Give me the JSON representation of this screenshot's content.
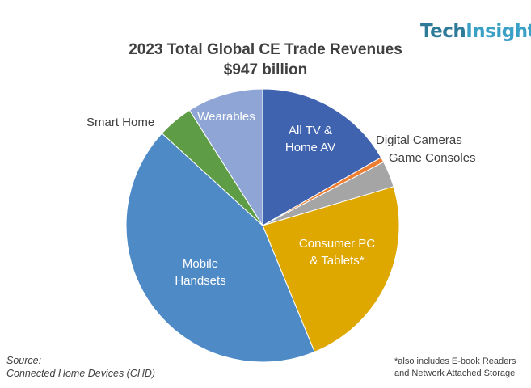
{
  "brand": {
    "part1": "Tech",
    "part2": "Insights"
  },
  "chart_data": {
    "type": "pie",
    "title": "2023 Total Global CE Trade Revenues",
    "subtitle": "$947 billion",
    "slices": [
      {
        "label": "All TV & Home AV",
        "value": 16.7,
        "color": "#3f63ae"
      },
      {
        "label": "Digital Cameras",
        "value": 0.6,
        "color": "#ed7d31"
      },
      {
        "label": "Game Consoles",
        "value": 3.1,
        "color": "#a5a5a5"
      },
      {
        "label": "Consumer PC & Tablets*",
        "value": 23.4,
        "color": "#dea800"
      },
      {
        "label": "Mobile Handsets",
        "value": 43.0,
        "color": "#4e8ac6"
      },
      {
        "label": "Smart Home",
        "value": 4.2,
        "color": "#5e9c45"
      },
      {
        "label": "Wearables",
        "value": 9.0,
        "color": "#8ea5d6"
      }
    ]
  },
  "source": {
    "line1": "Source:",
    "line2": "Connected Home Devices (CHD)"
  },
  "footnote": {
    "line1": "*also includes E-book Readers",
    "line2": "and Network Attached Storage"
  }
}
